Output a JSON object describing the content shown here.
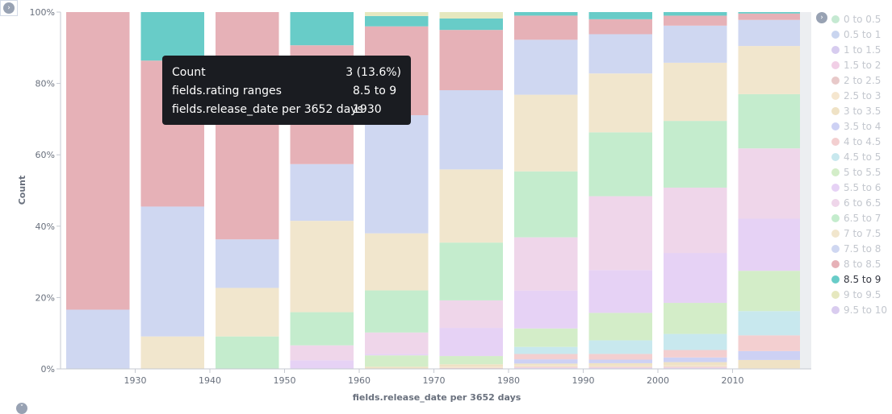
{
  "chart_data": {
    "type": "bar",
    "stacked": true,
    "percentage_mode": true,
    "xlabel": "fields.release_date per 3652 days",
    "ylabel": "Count",
    "ylim": [
      0,
      100
    ],
    "y_ticks": [
      "0%",
      "20%",
      "40%",
      "60%",
      "80%",
      "100%"
    ],
    "x_ticks": [
      "1930",
      "1940",
      "1950",
      "1960",
      "1970",
      "1980",
      "1990",
      "2000",
      "2010"
    ],
    "categories": [
      "1920",
      "1930",
      "1940",
      "1950",
      "1960",
      "1970",
      "1980",
      "1990",
      "2000",
      "2010"
    ],
    "series": [
      {
        "name": "0 to 0.5",
        "values": [
          0,
          0,
          0,
          0,
          0,
          0,
          0,
          0,
          0,
          0
        ]
      },
      {
        "name": "0.5 to 1",
        "values": [
          0,
          0,
          0,
          0,
          0,
          0,
          0,
          0,
          0,
          0
        ]
      },
      {
        "name": "1 to 1.5",
        "values": [
          0,
          0,
          0,
          0,
          0,
          0,
          0.2,
          0.2,
          0.2,
          0
        ]
      },
      {
        "name": "1.5 to 2",
        "values": [
          0,
          0,
          0,
          0,
          0,
          0,
          0.2,
          0.2,
          0.2,
          0
        ]
      },
      {
        "name": "2 to 2.5",
        "values": [
          0,
          0,
          0,
          0,
          0,
          0.3,
          0.2,
          0.2,
          0.2,
          0
        ]
      },
      {
        "name": "2.5 to 3",
        "values": [
          0,
          0,
          0,
          0,
          0,
          0.3,
          0.4,
          0.3,
          0.4,
          0.2
        ]
      },
      {
        "name": "3 to 3.5",
        "values": [
          0,
          0,
          0,
          0,
          0.6,
          0.7,
          0.5,
          0.7,
          0.9,
          2.3
        ]
      },
      {
        "name": "3.5 to 4",
        "values": [
          0,
          0,
          0,
          0,
          0,
          0,
          1.2,
          1.0,
          1.3,
          2.5
        ]
      },
      {
        "name": "4 to 4.5",
        "values": [
          0,
          0,
          0,
          0,
          0,
          0,
          1.5,
          1.6,
          2.1,
          4.4
        ]
      },
      {
        "name": "4.5 to 5",
        "values": [
          0,
          0,
          0,
          0,
          0,
          0,
          2.0,
          3.8,
          4.5,
          6.8
        ]
      },
      {
        "name": "5 to 5.5",
        "values": [
          0,
          0,
          0,
          0,
          3.2,
          2.3,
          5.2,
          7.7,
          8.7,
          11.3
        ]
      },
      {
        "name": "5.5 to 6",
        "values": [
          0,
          0,
          0,
          2.4,
          0.4,
          7.9,
          10.7,
          12.0,
          14.0,
          14.6
        ]
      },
      {
        "name": "6 to 6.5",
        "values": [
          0,
          0,
          0,
          4.2,
          6.0,
          7.7,
          15.0,
          20.7,
          18.3,
          19.7
        ]
      },
      {
        "name": "6.5 to 7",
        "values": [
          0,
          0,
          9.1,
          9.3,
          11.8,
          16.2,
          18.6,
          17.9,
          18.7,
          15.2
        ]
      },
      {
        "name": "7 to 7.5",
        "values": [
          0,
          9.1,
          13.6,
          25.6,
          16.0,
          20.5,
          21.6,
          16.5,
          16.3,
          13.5
        ]
      },
      {
        "name": "7.5 to 8",
        "values": [
          16.6,
          36.4,
          13.6,
          15.9,
          33.1,
          22.2,
          15.5,
          11.0,
          10.4,
          7.3
        ]
      },
      {
        "name": "8 to 8.5",
        "values": [
          83.4,
          40.9,
          63.7,
          33.3,
          24.9,
          16.9,
          6.8,
          4.2,
          2.8,
          1.8
        ]
      },
      {
        "name": "8.5 to 9",
        "values": [
          0,
          13.6,
          0,
          9.3,
          2.9,
          3.2,
          1.0,
          2.0,
          1.0,
          0.4
        ]
      },
      {
        "name": "9 to 9.5",
        "values": [
          0,
          0,
          0,
          0,
          1.1,
          1.8,
          0,
          0,
          0,
          0
        ]
      },
      {
        "name": "9.5 to 10",
        "values": [
          0,
          0,
          0,
          0,
          0,
          0,
          0,
          0,
          0,
          0
        ]
      }
    ],
    "colors": [
      "#c5e9d2",
      "#c9d5ef",
      "#d7ccef",
      "#f1cfe6",
      "#e8c9c9",
      "#f5e6cf",
      "#efe2c5",
      "#cdd1f4",
      "#f3cfd0",
      "#c8e8ee",
      "#d3edc8",
      "#e6d2f5",
      "#efd6ea",
      "#c4eccd",
      "#f1e6cd",
      "#cfd7f1",
      "#e6b1b7",
      "#68ccc8",
      "#e6e8bf",
      "#d9ccef"
    ],
    "legend_position": "right",
    "highlighted_series": "8.5 to 9"
  },
  "tooltip": {
    "rows": [
      {
        "key": "Count",
        "value": "3 (13.6%)"
      },
      {
        "key": "fields.rating ranges",
        "value": "8.5 to 9"
      },
      {
        "key": "fields.release_date per 3652 days",
        "value": "1930"
      }
    ]
  },
  "legend_toggle_icon": "chevron-right-icon"
}
